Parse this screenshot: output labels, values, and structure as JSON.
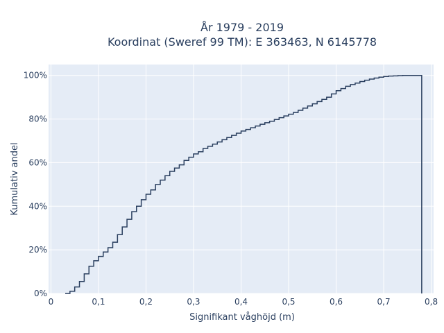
{
  "chart_data": {
    "type": "line",
    "line_shape": "step",
    "title_line1": "År 1979 - 2019",
    "title_line2": "Koordinat (Sweref 99 TM): E 363463, N 6145778",
    "xlabel": "Signifikant våghöjd (m)",
    "ylabel": "Kumulativ andel",
    "xlim": [
      -0.005,
      0.805
    ],
    "ylim": [
      0,
      1.05
    ],
    "x_ticks": [
      0,
      0.1,
      0.2,
      0.3,
      0.4,
      0.5,
      0.6,
      0.7,
      0.8
    ],
    "x_tick_labels": [
      "0",
      "0,1",
      "0,2",
      "0,3",
      "0,4",
      "0,5",
      "0,6",
      "0,7",
      "0,8"
    ],
    "y_ticks": [
      0,
      0.2,
      0.4,
      0.6,
      0.8,
      1.0
    ],
    "y_tick_labels": [
      "0%",
      "20%",
      "40%",
      "60%",
      "80%",
      "100%"
    ],
    "grid": true,
    "line_color": "#2a3f5f",
    "background_color": "#e5ecf6",
    "x": [
      0.03,
      0.04,
      0.05,
      0.06,
      0.07,
      0.08,
      0.09,
      0.1,
      0.11,
      0.12,
      0.13,
      0.14,
      0.15,
      0.16,
      0.17,
      0.18,
      0.19,
      0.2,
      0.21,
      0.22,
      0.23,
      0.24,
      0.25,
      0.26,
      0.27,
      0.28,
      0.29,
      0.3,
      0.31,
      0.32,
      0.33,
      0.34,
      0.35,
      0.36,
      0.37,
      0.38,
      0.39,
      0.4,
      0.41,
      0.42,
      0.43,
      0.44,
      0.45,
      0.46,
      0.47,
      0.48,
      0.49,
      0.5,
      0.51,
      0.52,
      0.53,
      0.54,
      0.55,
      0.56,
      0.57,
      0.58,
      0.59,
      0.6,
      0.61,
      0.62,
      0.63,
      0.64,
      0.65,
      0.66,
      0.67,
      0.68,
      0.69,
      0.7,
      0.71,
      0.72,
      0.73,
      0.74,
      0.75,
      0.76,
      0.77,
      0.78
    ],
    "y": [
      0.0,
      0.01,
      0.03,
      0.055,
      0.09,
      0.125,
      0.15,
      0.17,
      0.19,
      0.21,
      0.235,
      0.27,
      0.305,
      0.34,
      0.375,
      0.4,
      0.43,
      0.455,
      0.475,
      0.5,
      0.52,
      0.54,
      0.56,
      0.575,
      0.59,
      0.61,
      0.625,
      0.64,
      0.65,
      0.665,
      0.675,
      0.685,
      0.695,
      0.705,
      0.715,
      0.725,
      0.735,
      0.745,
      0.752,
      0.76,
      0.768,
      0.776,
      0.783,
      0.79,
      0.798,
      0.806,
      0.814,
      0.822,
      0.83,
      0.84,
      0.85,
      0.86,
      0.87,
      0.88,
      0.89,
      0.9,
      0.915,
      0.93,
      0.94,
      0.95,
      0.958,
      0.965,
      0.972,
      0.978,
      0.983,
      0.988,
      0.992,
      0.995,
      0.997,
      0.998,
      0.999,
      1.0,
      1.0,
      1.0,
      1.0,
      1.0
    ],
    "drop_to_zero_at_x": 0.78
  }
}
